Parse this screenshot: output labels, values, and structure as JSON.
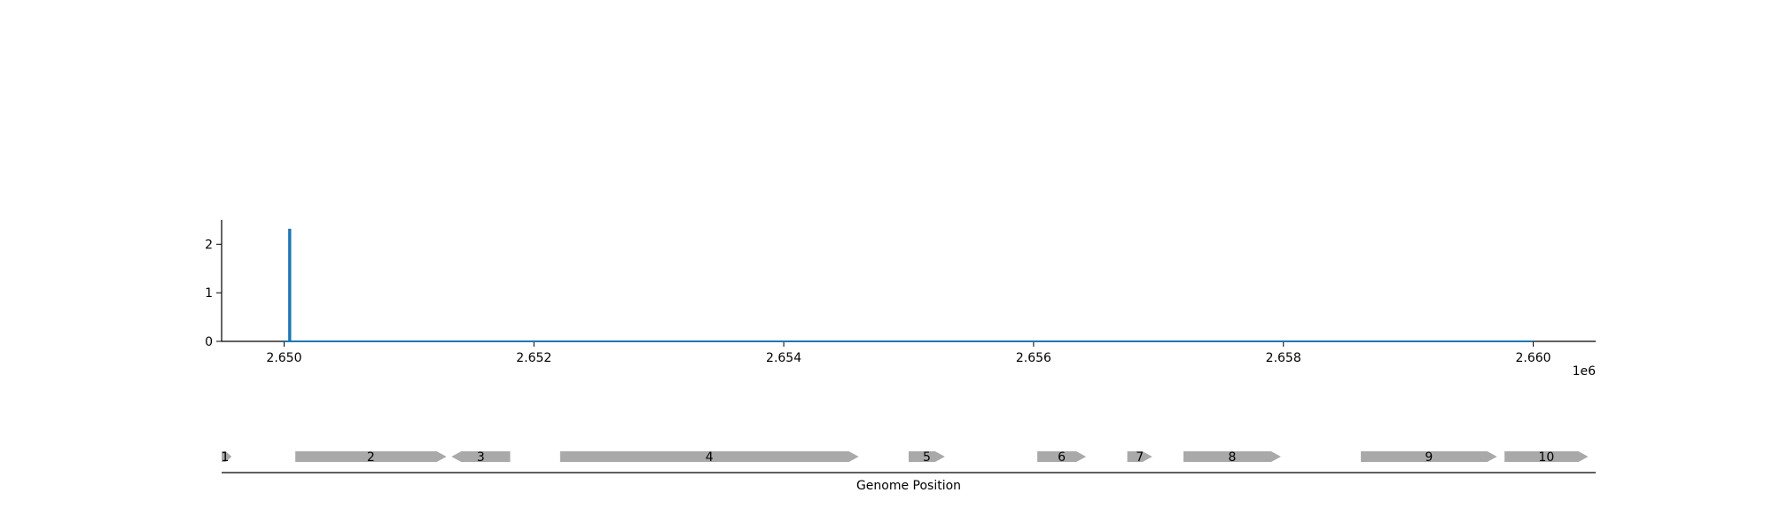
{
  "chart_data": [
    {
      "type": "line",
      "title": "",
      "xlabel": "",
      "ylabel": "",
      "x_offset_label": "1e6",
      "xlim": [
        2649500,
        2660500
      ],
      "ylim": [
        0,
        2.5
      ],
      "x_ticks": [
        2650000,
        2652000,
        2654000,
        2656000,
        2658000,
        2660000
      ],
      "x_tick_labels": [
        "2.650",
        "2.652",
        "2.654",
        "2.656",
        "2.658",
        "2.660"
      ],
      "y_ticks": [
        0,
        1,
        2
      ],
      "y_tick_labels": [
        "0",
        "1",
        "2"
      ],
      "grid": false,
      "series": [
        {
          "color": "#1f77b4",
          "x": [
            2650000,
            2650040,
            2650040,
            2650050,
            2650050,
            2660000
          ],
          "y": [
            0,
            0,
            2.3,
            2.3,
            0,
            0
          ]
        }
      ]
    },
    {
      "type": "gene-track",
      "xlabel": "Genome Position",
      "xlim": [
        2649500,
        2660500
      ],
      "color": "#a9a9a9",
      "genes": [
        {
          "label": "1",
          "start": 2649500,
          "end": 2649580,
          "strand": "+"
        },
        {
          "label": "2",
          "start": 2650090,
          "end": 2651300,
          "strand": "+"
        },
        {
          "label": "3",
          "start": 2651340,
          "end": 2651810,
          "strand": "-"
        },
        {
          "label": "4",
          "start": 2652210,
          "end": 2654600,
          "strand": "+"
        },
        {
          "label": "5",
          "start": 2655000,
          "end": 2655290,
          "strand": "+"
        },
        {
          "label": "6",
          "start": 2656030,
          "end": 2656420,
          "strand": "+"
        },
        {
          "label": "7",
          "start": 2656750,
          "end": 2656950,
          "strand": "+"
        },
        {
          "label": "8",
          "start": 2657200,
          "end": 2657980,
          "strand": "+"
        },
        {
          "label": "9",
          "start": 2658620,
          "end": 2659710,
          "strand": "+"
        },
        {
          "label": "10",
          "start": 2659770,
          "end": 2660440,
          "strand": "+"
        }
      ]
    }
  ]
}
